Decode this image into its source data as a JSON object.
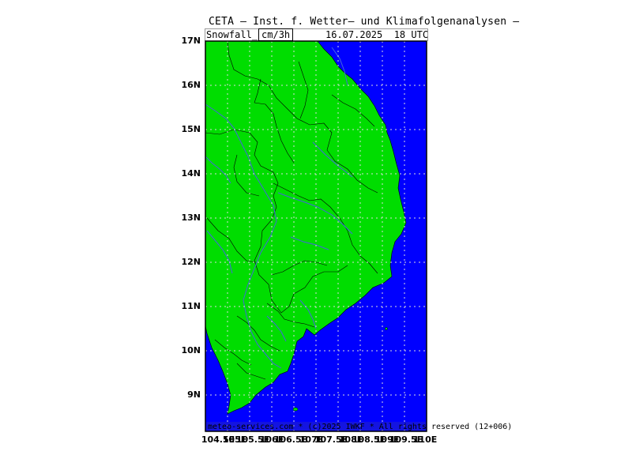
{
  "header": {
    "title": "CETA — Inst. f. Wetter— und Klimafolgenanalysen —",
    "field": "Snowfall_",
    "unit": "cm/3h",
    "timestamp": "16.07.2025  18 UTC"
  },
  "map": {
    "variable": "Snowfall",
    "unit": "cm/3h",
    "colors": {
      "sea": "#0000ff",
      "land": "#00dd00",
      "rivers": "#4466dd",
      "borders": "#000000",
      "grid": "#dddddd"
    },
    "lat_labels": [
      "17N",
      "16N",
      "15N",
      "14N",
      "13N",
      "12N",
      "11N",
      "10N",
      "9N"
    ],
    "lon_labels": [
      "104.5E",
      "105E",
      "105.5E",
      "106E",
      "106.5E",
      "107E",
      "107.5E",
      "108E",
      "108.5E",
      "109E",
      "109.5E",
      "110E"
    ],
    "credit": "meteo-services.com * (c)2025 IWKF * All rights reserved (12+006)"
  }
}
